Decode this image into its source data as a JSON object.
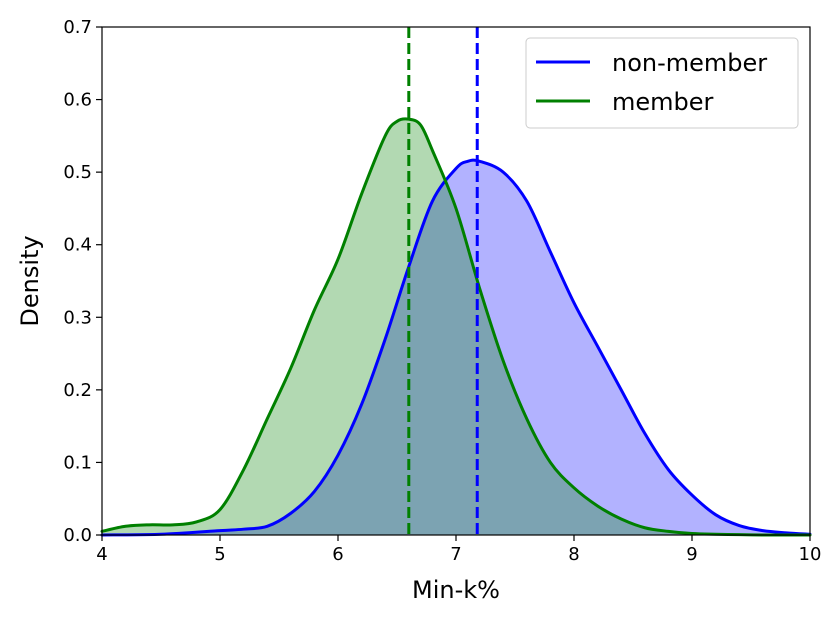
{
  "chart_data": {
    "type": "area",
    "xlabel": "Min-k%",
    "ylabel": "Density",
    "xlim": [
      4,
      10
    ],
    "ylim": [
      0,
      0.7
    ],
    "xticks": [
      4,
      5,
      6,
      7,
      8,
      9,
      10
    ],
    "yticks": [
      0.0,
      0.1,
      0.2,
      0.3,
      0.4,
      0.5,
      0.6,
      0.7
    ],
    "ytick_labels": [
      "0.0",
      "0.1",
      "0.2",
      "0.3",
      "0.4",
      "0.5",
      "0.6",
      "0.7"
    ],
    "grid": false,
    "legend_position": "top-right",
    "series": [
      {
        "name": "non-member",
        "color": "#0000ff",
        "fill_color": "#b3b3ff",
        "mean": 7.18,
        "x": [
          4.0,
          4.5,
          5.0,
          5.2,
          5.4,
          5.6,
          5.8,
          6.0,
          6.2,
          6.4,
          6.6,
          6.8,
          7.0,
          7.1,
          7.2,
          7.4,
          7.6,
          7.8,
          8.0,
          8.2,
          8.4,
          8.6,
          8.8,
          9.0,
          9.2,
          9.4,
          9.6,
          9.8,
          10.0
        ],
        "y": [
          0.0,
          0.001,
          0.006,
          0.008,
          0.012,
          0.03,
          0.06,
          0.11,
          0.18,
          0.27,
          0.37,
          0.46,
          0.505,
          0.515,
          0.515,
          0.5,
          0.46,
          0.39,
          0.32,
          0.26,
          0.2,
          0.14,
          0.09,
          0.055,
          0.028,
          0.013,
          0.006,
          0.003,
          0.001
        ]
      },
      {
        "name": "member",
        "color": "#008000",
        "fill_color": "#b3dab3",
        "mean": 6.6,
        "x": [
          4.0,
          4.2,
          4.4,
          4.6,
          4.8,
          5.0,
          5.2,
          5.4,
          5.6,
          5.8,
          6.0,
          6.2,
          6.4,
          6.5,
          6.6,
          6.7,
          6.8,
          7.0,
          7.2,
          7.4,
          7.6,
          7.8,
          8.0,
          8.2,
          8.4,
          8.6,
          8.8,
          9.0,
          9.2,
          9.4,
          9.6,
          9.8,
          10.0
        ],
        "y": [
          0.005,
          0.012,
          0.014,
          0.014,
          0.018,
          0.035,
          0.09,
          0.16,
          0.23,
          0.31,
          0.38,
          0.47,
          0.55,
          0.57,
          0.573,
          0.565,
          0.53,
          0.45,
          0.34,
          0.24,
          0.16,
          0.1,
          0.065,
          0.04,
          0.022,
          0.01,
          0.005,
          0.002,
          0.001,
          0.0005,
          0.0,
          0.0,
          0.0
        ]
      }
    ]
  }
}
